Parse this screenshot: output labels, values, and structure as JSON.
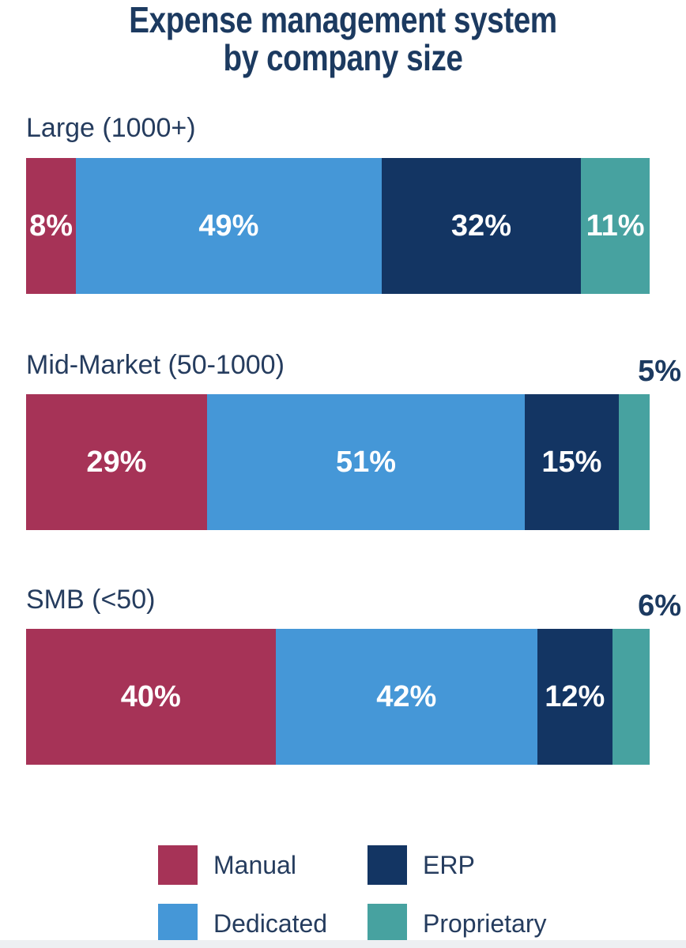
{
  "title": {
    "line1": "Expense management system",
    "line2": "by company size"
  },
  "chart_data": {
    "type": "bar",
    "orientation": "horizontal-stacked",
    "title": "Expense management system by company size",
    "categories": [
      "Large (1000+)",
      "Mid-Market (50-1000)",
      "SMB (<50)"
    ],
    "series": [
      {
        "name": "Manual",
        "color": "#A63357",
        "values": [
          8,
          29,
          40
        ]
      },
      {
        "name": "Dedicated",
        "color": "#4597D7",
        "values": [
          49,
          51,
          42
        ]
      },
      {
        "name": "ERP",
        "color": "#133563",
        "values": [
          32,
          15,
          12
        ]
      },
      {
        "name": "Proprietary",
        "color": "#47A2A0",
        "values": [
          11,
          5,
          6
        ]
      }
    ],
    "unit": "%",
    "xlim": [
      0,
      100
    ],
    "grid": false,
    "legend_position": "bottom",
    "value_label_color_inside": "#FFFFFF",
    "inside_label_min": 8,
    "outside_labels": [
      "",
      "5%",
      "6%"
    ]
  },
  "text_colors": {
    "title": "#1C3A60",
    "labels": "#253C5E"
  }
}
